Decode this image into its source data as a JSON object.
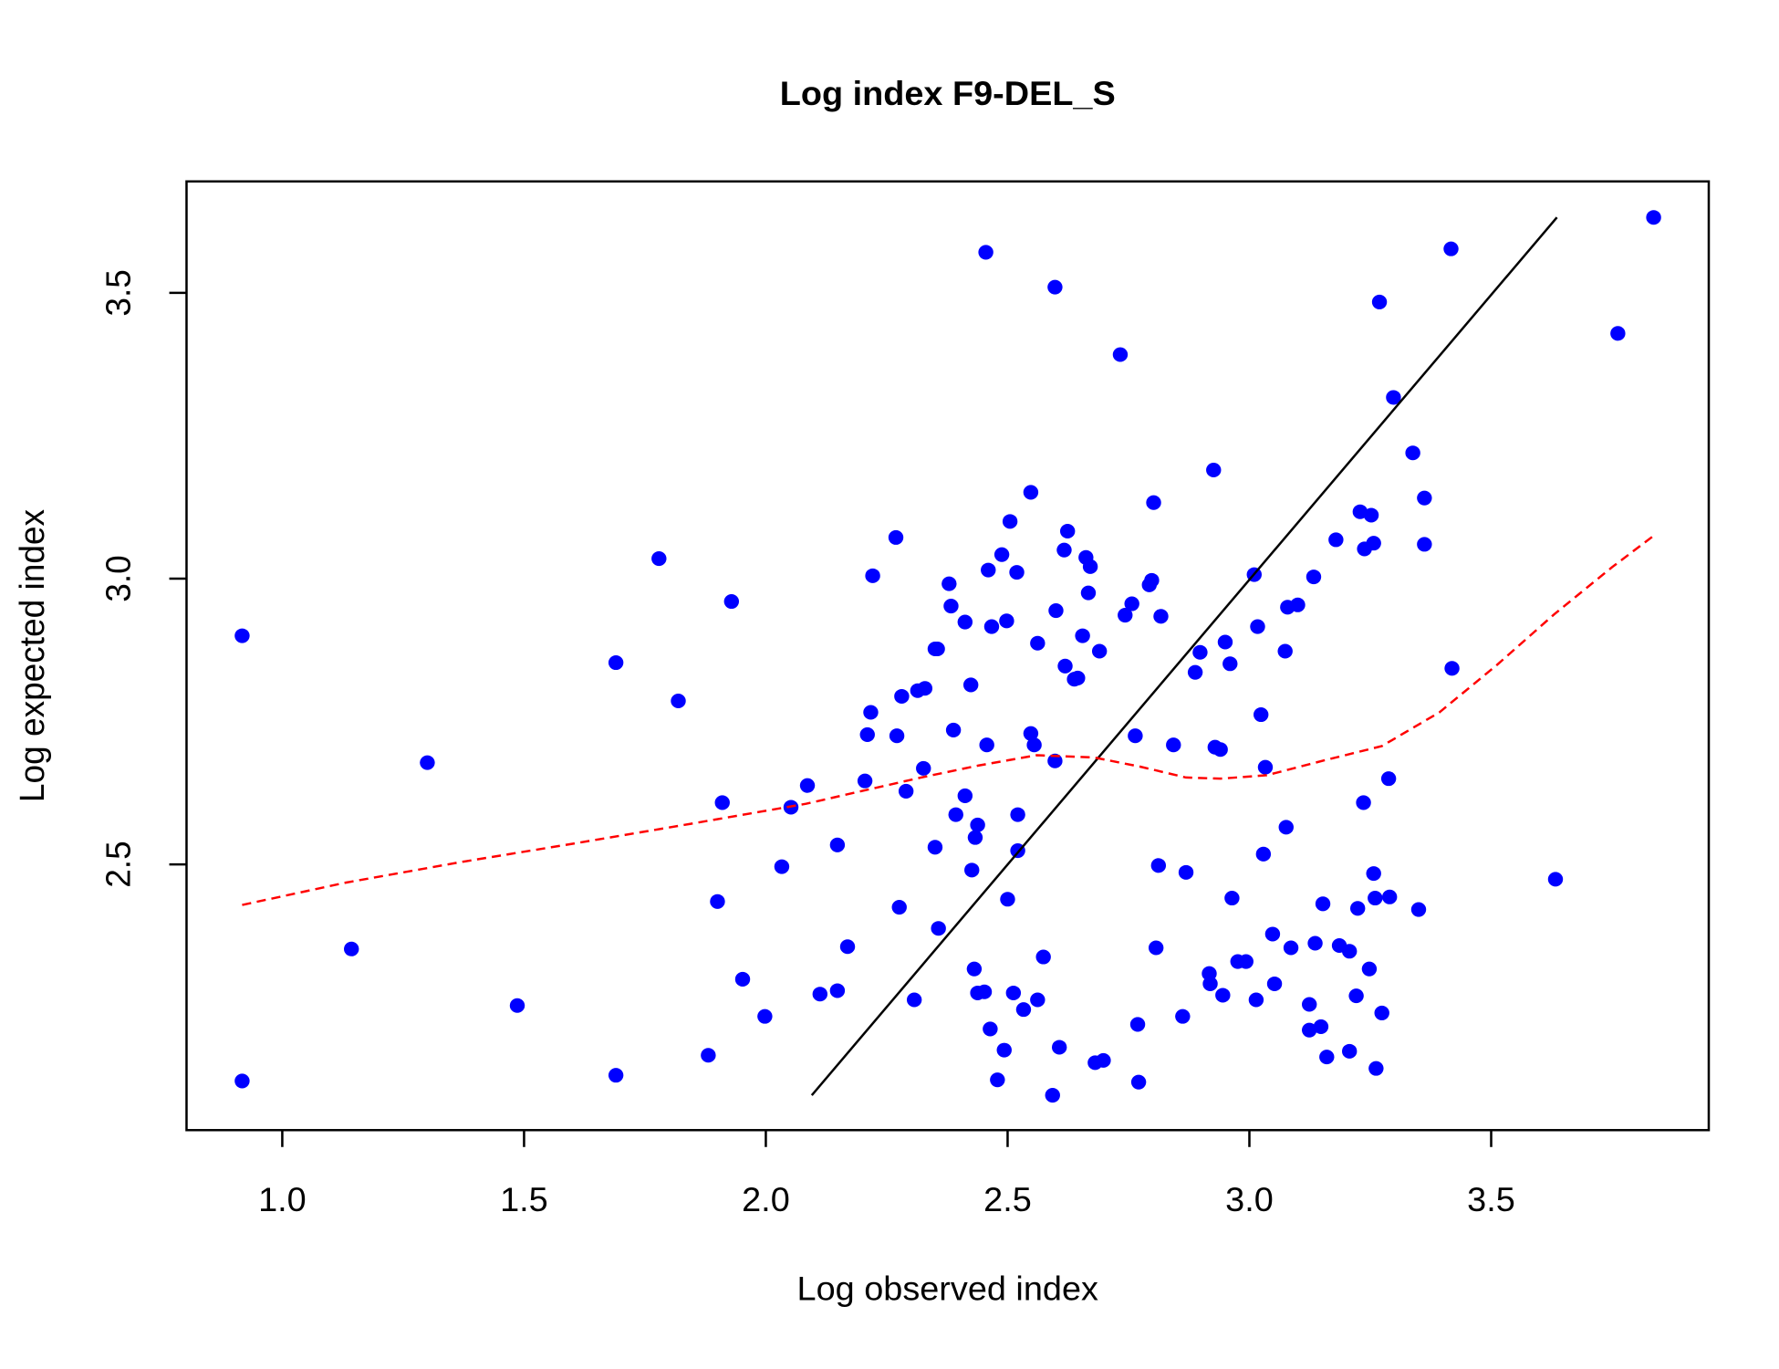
{
  "chart_data": {
    "type": "scatter",
    "title": "Log index F9-DEL_S",
    "x_label": "Log observed index",
    "y_label": "Log expected index",
    "xlim": [
      0.802,
      3.95
    ],
    "ylim": [
      2.035,
      3.695
    ],
    "xticks": [
      {
        "value": 1,
        "label": "1.0"
      },
      1.5,
      {
        "value": 2,
        "label": "2.0"
      },
      2.5,
      {
        "value": 3,
        "label": "3.0"
      },
      3.5
    ],
    "yticks": [
      2.5,
      {
        "value": 3,
        "label": "3.0"
      },
      3.5
    ],
    "series": [
      {
        "style": "points",
        "color": "#0000ff",
        "x": [
          0.917,
          0.917,
          1.143,
          1.3,
          1.486,
          1.69,
          1.69,
          1.779,
          1.819,
          1.881,
          1.9,
          1.91,
          1.929,
          1.952,
          1.998,
          2.033,
          2.052,
          2.086,
          2.112,
          2.148,
          2.148,
          2.169,
          2.205,
          2.21,
          2.217,
          2.221,
          2.269,
          2.271,
          2.276,
          2.281,
          2.29,
          2.307,
          2.314,
          2.329,
          2.326,
          2.35,
          2.355,
          2.35,
          2.357,
          2.379,
          2.383,
          2.388,
          2.393,
          2.412,
          2.412,
          2.424,
          2.426,
          2.431,
          2.433,
          2.438,
          2.438,
          2.452,
          2.455,
          2.457,
          2.46,
          2.464,
          2.467,
          2.479,
          2.488,
          2.493,
          2.498,
          2.5,
          2.505,
          2.512,
          2.519,
          2.521,
          2.521,
          2.533,
          2.548,
          2.548,
          2.555,
          2.562,
          2.562,
          2.574,
          2.593,
          2.598,
          2.598,
          2.6,
          2.607,
          2.617,
          2.619,
          2.624,
          2.638,
          2.645,
          2.655,
          2.662,
          2.667,
          2.671,
          2.681,
          2.69,
          2.698,
          2.733,
          2.743,
          2.757,
          2.764,
          2.769,
          2.771,
          2.793,
          2.798,
          2.802,
          2.807,
          2.812,
          2.817,
          2.843,
          2.862,
          2.869,
          2.888,
          2.898,
          2.917,
          2.919,
          2.926,
          2.929,
          2.94,
          2.945,
          2.95,
          2.96,
          2.964,
          2.976,
          2.993,
          3.01,
          3.014,
          3.017,
          3.024,
          3.029,
          3.033,
          3.048,
          3.052,
          3.074,
          3.076,
          3.079,
          3.086,
          3.1,
          3.124,
          3.124,
          3.133,
          3.136,
          3.148,
          3.152,
          3.16,
          3.179,
          3.186,
          3.207,
          3.207,
          3.221,
          3.224,
          3.229,
          3.236,
          3.238,
          3.248,
          3.252,
          3.257,
          3.257,
          3.26,
          3.262,
          3.269,
          3.274,
          3.288,
          3.29,
          3.298,
          3.338,
          3.35,
          3.362,
          3.362,
          3.417,
          3.419,
          3.633,
          3.762,
          3.836
        ],
        "y": [
          2.9,
          2.121,
          2.352,
          2.678,
          2.253,
          2.853,
          2.131,
          3.035,
          2.786,
          2.166,
          2.435,
          2.608,
          2.96,
          2.299,
          2.234,
          2.496,
          2.6,
          2.638,
          2.273,
          2.279,
          2.534,
          2.356,
          2.646,
          2.727,
          2.766,
          3.005,
          3.072,
          2.725,
          2.425,
          2.794,
          2.628,
          2.263,
          2.804,
          2.808,
          2.668,
          2.877,
          2.877,
          2.53,
          2.388,
          2.991,
          2.952,
          2.735,
          2.587,
          2.924,
          2.62,
          2.814,
          2.49,
          2.317,
          2.547,
          2.569,
          2.275,
          2.277,
          3.571,
          2.709,
          3.015,
          2.212,
          2.916,
          2.123,
          3.042,
          2.175,
          2.926,
          2.439,
          3.1,
          2.275,
          3.011,
          2.587,
          2.524,
          2.246,
          3.151,
          2.729,
          2.709,
          2.887,
          2.263,
          2.338,
          2.096,
          3.51,
          2.681,
          2.944,
          2.18,
          3.05,
          2.847,
          3.083,
          2.824,
          2.826,
          2.9,
          3.037,
          2.975,
          3.021,
          2.153,
          2.873,
          2.157,
          3.392,
          2.936,
          2.956,
          2.725,
          2.22,
          2.119,
          2.989,
          2.997,
          3.133,
          2.354,
          2.498,
          2.934,
          2.709,
          2.234,
          2.486,
          2.836,
          2.871,
          2.309,
          2.291,
          3.19,
          2.705,
          2.701,
          2.271,
          2.889,
          2.851,
          2.441,
          2.33,
          2.33,
          3.007,
          2.263,
          2.916,
          2.762,
          2.518,
          2.67,
          2.378,
          2.291,
          2.873,
          2.565,
          2.95,
          2.354,
          2.954,
          2.255,
          2.21,
          3.003,
          2.362,
          2.216,
          2.431,
          2.163,
          3.068,
          2.358,
          2.348,
          2.173,
          2.27,
          2.423,
          3.117,
          2.608,
          3.052,
          2.317,
          3.111,
          3.062,
          2.484,
          2.441,
          2.143,
          3.484,
          2.24,
          2.65,
          2.443,
          3.317,
          3.22,
          2.421,
          3.141,
          3.06,
          3.577,
          2.843,
          2.474,
          3.429,
          3.632
        ]
      },
      {
        "style": "line",
        "color": "#000000",
        "x": [
          2.095,
          3.636
        ],
        "y": [
          2.096,
          3.632
        ]
      },
      {
        "style": "dashed",
        "color": "#ff0000",
        "x": [
          0.917,
          1.131,
          1.369,
          1.607,
          1.845,
          2.083,
          2.321,
          2.44,
          2.56,
          2.679,
          2.774,
          2.869,
          2.94,
          3.036,
          3.155,
          3.274,
          3.393,
          3.512,
          3.631,
          3.75,
          3.836
        ],
        "y": [
          2.429,
          2.468,
          2.504,
          2.537,
          2.571,
          2.606,
          2.652,
          2.673,
          2.691,
          2.687,
          2.671,
          2.652,
          2.65,
          2.656,
          2.682,
          2.707,
          2.766,
          2.849,
          2.938,
          3.02,
          3.075
        ]
      }
    ]
  }
}
